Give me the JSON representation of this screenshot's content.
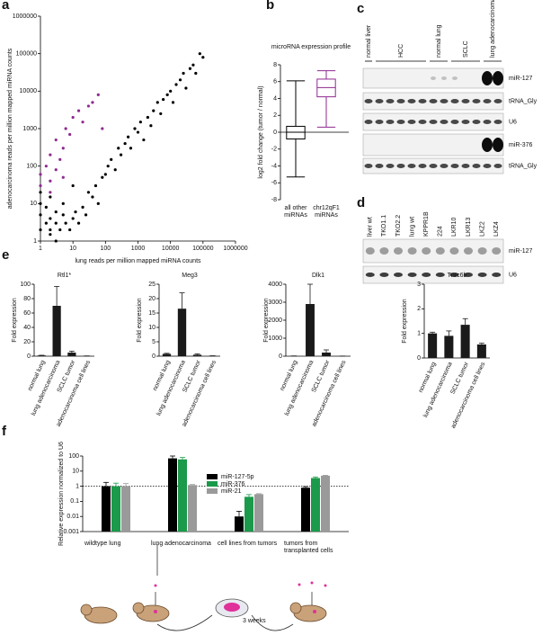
{
  "panel_labels": [
    "a",
    "b",
    "c",
    "d",
    "e",
    "f"
  ],
  "blot_c": {
    "groups": [
      "normal liver",
      "HCC",
      "normal lung",
      "SCLC",
      "lung adenocarcinoma"
    ],
    "rows": [
      "miR-127",
      "tRNA_Gly",
      "U6",
      "miR-376",
      "tRNA_Gly"
    ]
  },
  "blot_d": {
    "lanes": [
      "liver wt",
      "TKO1.1",
      "TKO2.2",
      "lung wt",
      "KPPR1B",
      "224",
      "LKR10",
      "LKR13",
      "LKZ2",
      "LKZ4"
    ],
    "rows": [
      "miR-127",
      "U6"
    ]
  },
  "annotation": "3 weeks",
  "chart_data": [
    {
      "type": "scatter",
      "log": true,
      "x_label": "lung reads per million mapped miRNA counts",
      "y_label": "adenocarcinoma reads per million mapped miRNA counts",
      "xlim": [
        1,
        1000000
      ],
      "ylim": [
        1,
        1000000
      ],
      "xticks": [
        1,
        10,
        100,
        1000,
        10000,
        100000,
        1000000
      ],
      "yticks": [
        1,
        10,
        100,
        1000,
        10000,
        100000,
        1000000
      ],
      "series": [
        {
          "color": "#000000",
          "x": [
            1,
            1,
            1,
            1,
            1.5,
            1.5,
            2,
            2,
            2,
            3,
            3,
            4,
            5,
            5,
            6,
            8,
            10,
            10,
            12,
            15,
            20,
            25,
            30,
            40,
            50,
            60,
            80,
            100,
            120,
            150,
            200,
            250,
            300,
            400,
            500,
            600,
            800,
            1000,
            1200,
            1500,
            2000,
            2500,
            3000,
            4000,
            5000,
            6000,
            8000,
            10000,
            12000,
            15000,
            20000,
            25000,
            30000,
            40000,
            50000,
            60000,
            80000,
            100000,
            3,
            2
          ],
          "values": [
            2,
            5,
            10,
            20,
            3,
            8,
            2,
            4,
            15,
            3,
            6,
            2,
            5,
            10,
            3,
            2,
            30,
            4,
            6,
            3,
            8,
            5,
            20,
            15,
            30,
            10,
            50,
            60,
            100,
            150,
            80,
            300,
            200,
            400,
            600,
            300,
            1000,
            800,
            1500,
            500,
            2000,
            1200,
            3000,
            5000,
            2500,
            6000,
            8000,
            10000,
            5000,
            15000,
            20000,
            30000,
            12000,
            40000,
            50000,
            30000,
            100000,
            80000,
            1,
            1.5
          ]
        },
        {
          "color": "#8e2a8e",
          "x": [
            1,
            1,
            1.5,
            2,
            2,
            3,
            3,
            4,
            5,
            6,
            8,
            10,
            15,
            20,
            30,
            40,
            60,
            80,
            2,
            5
          ],
          "values": [
            30,
            60,
            100,
            40,
            200,
            80,
            500,
            150,
            300,
            1000,
            700,
            2000,
            3000,
            1500,
            4000,
            5000,
            8000,
            1000,
            20,
            50
          ]
        }
      ]
    },
    {
      "type": "box",
      "title": "microRNA expression profile",
      "y_label": "log2 fold change (tumor / normal)",
      "ylim": [
        -8,
        8
      ],
      "yticks": [
        -8,
        -6,
        -4,
        -2,
        0,
        2,
        4,
        6,
        8
      ],
      "series": [
        {
          "name": "all other miRNAs",
          "color": "#000000",
          "min": -5.3,
          "q1": -0.8,
          "median": 0,
          "q3": 0.7,
          "max": 6.1
        },
        {
          "name": "chr12qF1 miRNAs",
          "color": "#8e2a8e",
          "min": 0.6,
          "q1": 4.2,
          "median": 5.3,
          "q3": 6.3,
          "max": 7.3
        }
      ]
    },
    {
      "type": "bar",
      "title": "Rtl1*",
      "y_label": "Fold expression",
      "color": "#1a1a1a",
      "categories": [
        "normal lung",
        "lung adenocarcinoma",
        "SCLC tumor",
        "adenocarcinoma cell lines"
      ],
      "values": [
        1,
        70,
        5,
        0.3
      ],
      "errors": [
        0.3,
        27,
        2,
        0.1
      ],
      "ylim": [
        0,
        100
      ],
      "yticks": [
        0,
        20,
        40,
        60,
        80,
        100
      ]
    },
    {
      "type": "bar",
      "title": "Meg3",
      "y_label": "Fold expression",
      "color": "#1a1a1a",
      "categories": [
        "normal lung",
        "lung adenocarcinoma",
        "SCLC tumor",
        "adenocarcinoma cell lines"
      ],
      "values": [
        0.8,
        16.5,
        0.5,
        0.1
      ],
      "errors": [
        0.2,
        5.5,
        0.3,
        0.05
      ],
      "ylim": [
        0,
        25
      ],
      "yticks": [
        0,
        5,
        10,
        15,
        20,
        25
      ]
    },
    {
      "type": "bar",
      "title": "Dlk1",
      "y_label": "Fold expression",
      "color": "#1a1a1a",
      "categories": [
        "normal lung",
        "lung adenocarcinoma",
        "SCLC tumor",
        "adenocarcinoma cell lines"
      ],
      "values": [
        10,
        2900,
        200,
        5
      ],
      "errors": [
        5,
        1100,
        150,
        3
      ],
      "ylim": [
        0,
        4000
      ],
      "yticks": [
        0,
        1000,
        2000,
        3000,
        4000
      ]
    },
    {
      "type": "bar",
      "title": "Tnrc6b",
      "y_label": "Fold expression",
      "color": "#1a1a1a",
      "categories": [
        "normal lung",
        "lung adenocarcinoma",
        "SCLC tumor",
        "adenocarcinoma cell lines"
      ],
      "values": [
        1.0,
        0.9,
        1.35,
        0.55
      ],
      "errors": [
        0.05,
        0.2,
        0.25,
        0.05
      ],
      "ylim": [
        0,
        3
      ],
      "yticks": [
        0,
        1,
        2,
        3
      ]
    },
    {
      "type": "bar",
      "log": true,
      "y_label": "Relative expression normalized to U6",
      "reference_line": 1,
      "categories": [
        "wildtype lung",
        "lung adenocarcinoma",
        "cell lines from tumors",
        "tumors from transplanted cells"
      ],
      "ylim": [
        0.001,
        100
      ],
      "yticks": [
        0.001,
        0.01,
        0.1,
        1,
        10,
        100
      ],
      "series": [
        {
          "name": "miR-127-5p",
          "color": "#000000",
          "values": [
            1,
            70,
            0.01,
            0.8
          ],
          "errors": [
            0.8,
            30,
            0.012,
            0.15
          ]
        },
        {
          "name": "miR-376",
          "color": "#1a9a4a",
          "values": [
            1,
            60,
            0.2,
            3.5
          ],
          "errors": [
            0.6,
            20,
            0.08,
            0.6
          ]
        },
        {
          "name": "miR-21",
          "color": "#9a9a9a",
          "values": [
            1,
            1.2,
            0.3,
            5
          ],
          "errors": [
            0.5,
            0.1,
            0.02,
            0.3
          ]
        }
      ]
    }
  ]
}
